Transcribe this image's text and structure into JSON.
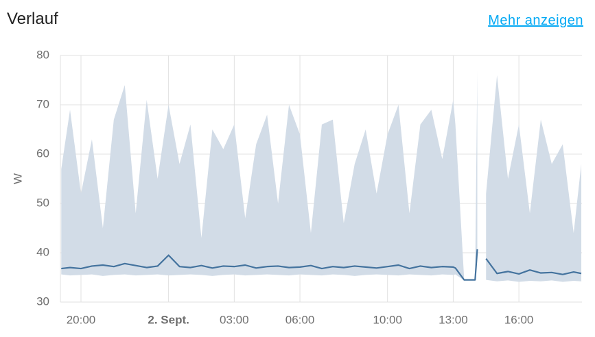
{
  "header": {
    "title": "Verlauf",
    "link": "Mehr anzeigen"
  },
  "chart_data": {
    "type": "line",
    "ylabel": "W",
    "color": "#44739e",
    "band_color": "#d2dce7",
    "grid": true,
    "ylim": [
      30,
      80
    ],
    "yticks": [
      30,
      40,
      50,
      60,
      70,
      80
    ],
    "xlim": [
      19.06,
      42.88
    ],
    "xticks": [
      {
        "value": 20,
        "label": "20:00"
      },
      {
        "value": 24,
        "label": "2. Sept.",
        "bold": true
      },
      {
        "value": 27,
        "label": "03:00"
      },
      {
        "value": 30,
        "label": "06:00"
      },
      {
        "value": 34,
        "label": "10:00"
      },
      {
        "value": 37,
        "label": "13:00"
      },
      {
        "value": 40,
        "label": "16:00"
      }
    ],
    "x": [
      19.1,
      19.5,
      20,
      20.5,
      21,
      21.5,
      22,
      22.5,
      23,
      23.5,
      24,
      24.5,
      25,
      25.5,
      26,
      26.5,
      27,
      27.5,
      28,
      28.5,
      29,
      29.5,
      30,
      30.5,
      31,
      31.5,
      32,
      32.5,
      33,
      33.5,
      34,
      34.5,
      35,
      35.5,
      36,
      36.5,
      37,
      37.1,
      37.5,
      38,
      38.1,
      38.3,
      38.5,
      39,
      39.5,
      40,
      40.5,
      41,
      41.5,
      42,
      42.5,
      42.85
    ],
    "values": [
      36.8,
      37,
      36.8,
      37.3,
      37.5,
      37.2,
      37.8,
      37.4,
      37,
      37.3,
      39.5,
      37.2,
      37,
      37.4,
      36.9,
      37.3,
      37.2,
      37.5,
      36.9,
      37.2,
      37.3,
      37,
      37.1,
      37.4,
      36.8,
      37.2,
      37,
      37.3,
      37.1,
      36.9,
      37.2,
      37.5,
      36.8,
      37.3,
      37,
      37.2,
      37.1,
      36.9,
      34.5,
      34.5,
      40.7,
      null,
      38.8,
      35.8,
      36.2,
      35.7,
      36.5,
      35.9,
      36,
      35.6,
      36.1,
      35.8
    ],
    "min": [
      35.6,
      35.4,
      35.5,
      35.6,
      35.3,
      35.5,
      35.6,
      35.4,
      35.5,
      35.6,
      35.4,
      35.5,
      35.6,
      35.5,
      35.3,
      35.5,
      35.6,
      35.4,
      35.5,
      35.6,
      35.5,
      35.4,
      35.6,
      35.5,
      35.4,
      35.6,
      35.5,
      35.3,
      35.5,
      35.6,
      35.5,
      35.4,
      35.6,
      35.5,
      35.4,
      35.6,
      35.5,
      35.6,
      34.4,
      34.4,
      40.5,
      null,
      34.5,
      34.2,
      34.4,
      34.1,
      34.3,
      34.2,
      34.4,
      34.1,
      34.3,
      34.2
    ],
    "max": [
      57,
      69,
      52,
      63,
      45,
      67,
      74,
      48,
      71,
      55,
      70,
      58,
      66,
      43,
      65,
      61,
      66,
      47,
      62,
      68,
      50,
      70,
      64,
      44,
      66,
      67,
      46,
      58,
      65,
      52,
      64,
      70,
      48,
      66,
      69,
      59,
      71,
      66,
      34.6,
      34.6,
      77,
      null,
      52,
      76,
      55,
      66,
      48,
      67,
      58,
      62,
      44,
      58
    ]
  }
}
